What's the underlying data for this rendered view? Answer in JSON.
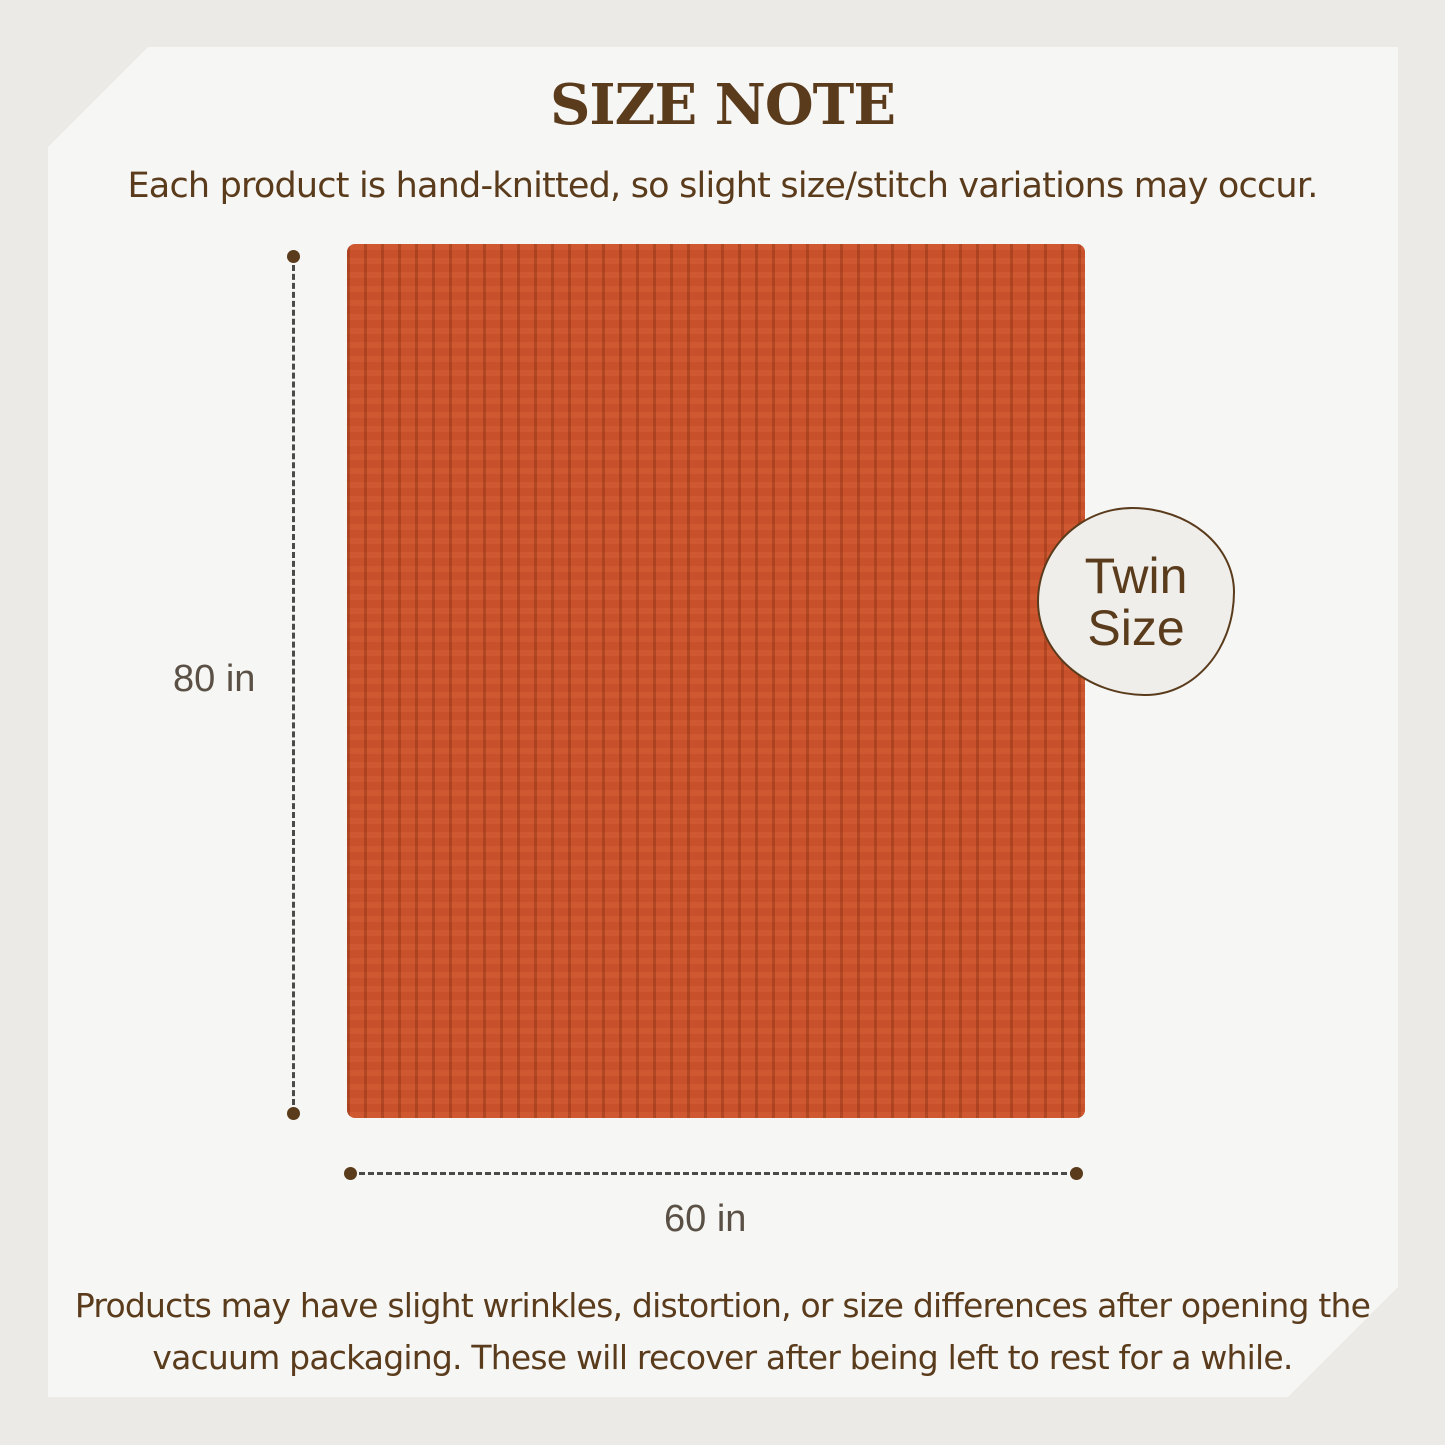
{
  "title": "SIZE NOTE",
  "subtitle": "Each product is hand-knitted, so slight size/stitch variations may occur.",
  "product": {
    "image": "orange-chunky-knit-blanket",
    "color": "#c8502a"
  },
  "dimensions": {
    "height": "80 in",
    "width": "60 in"
  },
  "badge": {
    "line1": "Twin",
    "line2": "Size"
  },
  "footer": {
    "line1": "Products may have slight wrinkles, distortion, or size differences after opening the",
    "line2": "vacuum packaging. These will recover after being left to rest for a while."
  }
}
